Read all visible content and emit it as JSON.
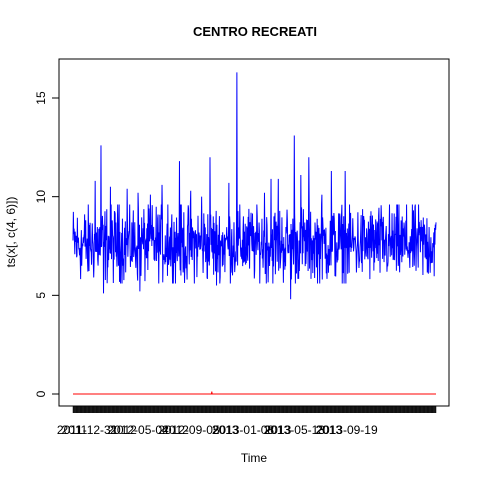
{
  "chart_data": {
    "type": "line",
    "title": "CENTRO RECREATI",
    "xlabel": "Time",
    "ylabel": "ts(x[, c(4, 6)])",
    "ylim": [
      0,
      17
    ],
    "x_range": [
      1,
      1000
    ],
    "y_ticks": [
      0,
      5,
      10,
      15
    ],
    "x_tick_labels": [
      {
        "t": 40,
        "label": "2011-12-31"
      },
      {
        "t": 180,
        "label": "2012-05-04"
      },
      {
        "t": 320,
        "label": "2012-09-05"
      },
      {
        "t": 470,
        "label": "2013-01-08"
      },
      {
        "t": 610,
        "label": "2013-05-13"
      },
      {
        "t": 755,
        "label": "2013-09-19"
      }
    ],
    "x_tick_labels_overlapped": [
      {
        "t": 5,
        "label": "2011"
      },
      {
        "t": 140,
        "label": "2012"
      },
      {
        "t": 283,
        "label": "2012"
      },
      {
        "t": 420,
        "label": "2013"
      },
      {
        "t": 565,
        "label": "2013"
      },
      {
        "t": 705,
        "label": "2013"
      }
    ],
    "series": [
      {
        "color": "#0000FF",
        "base": 7.6,
        "spread": 1.2,
        "peaks": [
          [
            25,
            6.5
          ],
          [
            35,
            8.5
          ],
          [
            42,
            6.2
          ],
          [
            47,
            7.5
          ],
          [
            62,
            10.8
          ],
          [
            78,
            12.6
          ],
          [
            85,
            5.1
          ],
          [
            104,
            10.5
          ],
          [
            128,
            9.6
          ],
          [
            150,
            10.4
          ],
          [
            180,
            10.2
          ],
          [
            185,
            5.2
          ],
          [
            214,
            10.1
          ],
          [
            246,
            10.6
          ],
          [
            262,
            9.6
          ],
          [
            294,
            11.8
          ],
          [
            315,
            5.8
          ],
          [
            325,
            10.3
          ],
          [
            355,
            10.0
          ],
          [
            378,
            12.0
          ],
          [
            396,
            5.5
          ],
          [
            430,
            10.7
          ],
          [
            452,
            16.3
          ],
          [
            470,
            9.0
          ],
          [
            528,
            10.2
          ],
          [
            546,
            10.9
          ],
          [
            566,
            10.9
          ],
          [
            600,
            4.8
          ],
          [
            610,
            13.1
          ],
          [
            628,
            11.1
          ],
          [
            650,
            12.0
          ],
          [
            686,
            10.1
          ],
          [
            712,
            11.3
          ],
          [
            750,
            11.3
          ]
        ]
      },
      {
        "color": "#FF0000",
        "value": 0.0,
        "blip_at": 383,
        "blip": 0.12
      }
    ]
  }
}
